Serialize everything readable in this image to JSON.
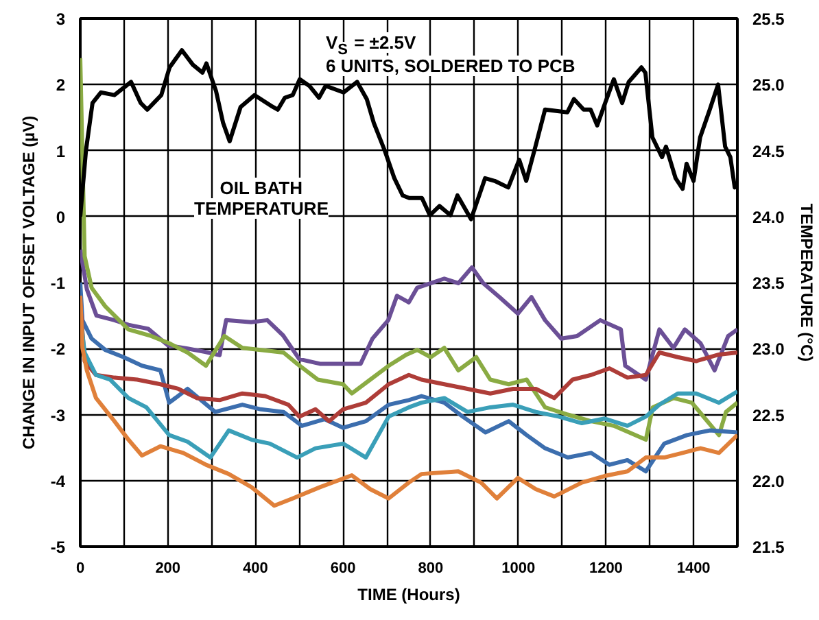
{
  "chart_data": {
    "type": "line",
    "xlabel": "TIME (Hours)",
    "ylabel": "CHANGE IN INPUT OFFSET VOLTAGE (µV)",
    "y2label": "TEMPERATURE (°C)",
    "annotations": [
      "V$_{S}$ = ±2.5V",
      "6 UNITS, SOLDERED TO PCB",
      "OIL BATH\nTEMPERATURE"
    ],
    "xlim": [
      0,
      1500
    ],
    "ylim": [
      -5,
      3
    ],
    "y2lim": [
      21.5,
      25.5
    ],
    "xticks": [
      0,
      {
        "value": 100,
        "label": null
      },
      200,
      {
        "value": 300,
        "label": null
      },
      400,
      {
        "value": 500,
        "label": null
      },
      600,
      {
        "value": 700,
        "label": null
      },
      800,
      {
        "value": 900,
        "label": null
      },
      1000,
      {
        "value": 1100,
        "label": null
      },
      1200,
      {
        "value": 1300,
        "label": null
      },
      1400,
      {
        "value": 1500,
        "label": null
      }
    ],
    "yticks": [
      -5,
      -4,
      -3,
      -2,
      -1,
      0,
      1,
      2,
      3
    ],
    "y2ticks": [
      21.5,
      {
        "value": 22,
        "label": "22.0"
      },
      22.5,
      {
        "value": 23,
        "label": "23.0"
      },
      23.5,
      {
        "value": 24,
        "label": "24.0"
      },
      24.5,
      {
        "value": 25,
        "label": "25.0"
      },
      25.5
    ],
    "grid": true,
    "line_style": "solid",
    "marker": "none",
    "series": [
      {
        "color": "#6b4f96",
        "x": [
          0,
          15,
          37,
          78,
          110,
          155,
          200,
          245,
          285,
          318,
          333,
          390,
          427,
          463,
          500,
          547,
          600,
          640,
          667,
          703,
          723,
          750,
          769,
          831,
          863,
          894,
          920,
          957,
          999,
          1030,
          1061,
          1098,
          1134,
          1187,
          1234,
          1244,
          1291,
          1322,
          1354,
          1380,
          1416,
          1448,
          1479,
          1500
        ],
        "values": [
          -0.5,
          -1.1,
          -1.5,
          -1.57,
          -1.64,
          -1.7,
          -1.95,
          -2.0,
          -2.05,
          -2.1,
          -1.57,
          -1.6,
          -1.57,
          -1.8,
          -2.16,
          -2.23,
          -2.23,
          -2.23,
          -1.85,
          -1.57,
          -1.2,
          -1.3,
          -1.08,
          -0.94,
          -1.01,
          -0.77,
          -1.01,
          -1.22,
          -1.47,
          -1.22,
          -1.57,
          -1.85,
          -1.81,
          -1.57,
          -1.71,
          -2.26,
          -2.47,
          -1.71,
          -1.99,
          -1.71,
          -1.92,
          -2.33,
          -1.81,
          -1.71
        ]
      },
      {
        "color": "#8aab43",
        "x": [
          0,
          10,
          26,
          57,
          110,
          162,
          203,
          245,
          287,
          329,
          370,
          412,
          464,
          495,
          542,
          600,
          620,
          662,
          704,
          745,
          769,
          800,
          831,
          863,
          904,
          936,
          978,
          1019,
          1061,
          1113,
          1166,
          1218,
          1291,
          1307,
          1354,
          1396,
          1458,
          1474,
          1500
        ],
        "values": [
          2.4,
          -0.6,
          -1.08,
          -1.36,
          -1.71,
          -1.81,
          -1.92,
          -2.06,
          -2.26,
          -1.81,
          -1.99,
          -2.02,
          -2.06,
          -2.23,
          -2.47,
          -2.54,
          -2.68,
          -2.47,
          -2.26,
          -2.09,
          -2.02,
          -2.13,
          -1.99,
          -2.33,
          -2.13,
          -2.47,
          -2.54,
          -2.47,
          -2.89,
          -3.0,
          -3.1,
          -3.17,
          -3.38,
          -2.89,
          -2.75,
          -2.82,
          -3.31,
          -2.96,
          -2.82
        ]
      },
      {
        "color": "#3c6eae",
        "x": [
          0,
          5,
          26,
          57,
          99,
          141,
          183,
          203,
          245,
          308,
          370,
          412,
          464,
          506,
          558,
          600,
          652,
          704,
          750,
          779,
          831,
          873,
          925,
          978,
          1019,
          1061,
          1113,
          1166,
          1208,
          1249,
          1291,
          1333,
          1385,
          1437,
          1500
        ],
        "values": [
          -1.0,
          -1.57,
          -1.85,
          -2.02,
          -2.13,
          -2.26,
          -2.33,
          -2.82,
          -2.61,
          -2.96,
          -2.85,
          -2.92,
          -2.96,
          -3.17,
          -3.07,
          -3.2,
          -3.1,
          -2.85,
          -2.78,
          -2.72,
          -2.82,
          -3.03,
          -3.27,
          -3.1,
          -3.31,
          -3.51,
          -3.65,
          -3.58,
          -3.76,
          -3.69,
          -3.86,
          -3.44,
          -3.31,
          -3.24,
          -3.27
        ]
      },
      {
        "color": "#ae3d38",
        "x": [
          0,
          10,
          36,
          78,
          130,
          183,
          224,
          266,
          318,
          370,
          422,
          475,
          500,
          537,
          568,
          600,
          652,
          704,
          750,
          779,
          831,
          884,
          936,
          988,
          1040,
          1082,
          1124,
          1166,
          1208,
          1249,
          1291,
          1322,
          1364,
          1406,
          1458,
          1500
        ],
        "values": [
          -1.3,
          -2.19,
          -2.4,
          -2.44,
          -2.47,
          -2.54,
          -2.61,
          -2.75,
          -2.78,
          -2.68,
          -2.72,
          -2.85,
          -3.03,
          -2.92,
          -3.1,
          -2.92,
          -2.82,
          -2.54,
          -2.4,
          -2.47,
          -2.54,
          -2.61,
          -2.68,
          -2.61,
          -2.61,
          -2.75,
          -2.47,
          -2.4,
          -2.3,
          -2.44,
          -2.4,
          -2.06,
          -2.13,
          -2.19,
          -2.09,
          -2.06
        ]
      },
      {
        "color": "#3a9fb8",
        "x": [
          0,
          10,
          36,
          68,
          110,
          151,
          203,
          245,
          297,
          339,
          391,
          433,
          495,
          537,
          600,
          652,
          704,
          750,
          779,
          831,
          884,
          936,
          988,
          1040,
          1092,
          1145,
          1197,
          1249,
          1291,
          1322,
          1364,
          1406,
          1458,
          1500
        ],
        "values": [
          -1.5,
          -2.06,
          -2.4,
          -2.47,
          -2.75,
          -2.89,
          -3.31,
          -3.41,
          -3.65,
          -3.24,
          -3.38,
          -3.44,
          -3.65,
          -3.51,
          -3.44,
          -3.65,
          -3.03,
          -2.89,
          -2.82,
          -2.75,
          -2.96,
          -2.89,
          -2.85,
          -2.96,
          -3.03,
          -3.13,
          -3.06,
          -3.17,
          -3.03,
          -2.85,
          -2.68,
          -2.68,
          -2.82,
          -2.65
        ]
      },
      {
        "color": "#e0803a",
        "x": [
          0,
          5,
          15,
          36,
          78,
          110,
          141,
          183,
          235,
          287,
          339,
          391,
          443,
          485,
          547,
          620,
          662,
          704,
          750,
          779,
          863,
          915,
          951,
          999,
          1040,
          1082,
          1145,
          1197,
          1249,
          1291,
          1333,
          1375,
          1416,
          1458,
          1500
        ],
        "values": [
          -1.2,
          -1.99,
          -2.33,
          -2.75,
          -3.1,
          -3.38,
          -3.62,
          -3.48,
          -3.58,
          -3.76,
          -3.9,
          -4.1,
          -4.38,
          -4.27,
          -4.1,
          -3.92,
          -4.13,
          -4.27,
          -4.03,
          -3.9,
          -3.86,
          -4.03,
          -4.27,
          -3.96,
          -4.13,
          -4.24,
          -4.03,
          -3.93,
          -3.86,
          -3.65,
          -3.65,
          -3.58,
          -3.51,
          -3.58,
          -3.31
        ]
      },
      {
        "color": "#000000",
        "axis": "y2",
        "x": [
          0,
          13,
          28,
          47,
          78,
          116,
          138,
          153,
          185,
          204,
          232,
          257,
          279,
          288,
          310,
          326,
          341,
          366,
          398,
          435,
          451,
          467,
          485,
          501,
          523,
          545,
          560,
          601,
          632,
          654,
          670,
          695,
          717,
          736,
          751,
          780,
          798,
          820,
          845,
          861,
          892,
          924,
          946,
          977,
          1002,
          1018,
          1039,
          1061,
          1112,
          1127,
          1149,
          1165,
          1180,
          1196,
          1218,
          1237,
          1252,
          1281,
          1290,
          1306,
          1328,
          1337,
          1359,
          1375,
          1384,
          1400,
          1415,
          1437,
          1456,
          1472,
          1484,
          1494,
          1500
        ],
        "values": [
          24.0,
          24.5,
          24.86,
          24.94,
          24.92,
          25.02,
          24.86,
          24.81,
          24.92,
          25.13,
          25.26,
          25.15,
          25.09,
          25.16,
          24.95,
          24.71,
          24.57,
          24.83,
          24.92,
          24.84,
          24.81,
          24.9,
          24.92,
          25.04,
          24.99,
          24.9,
          24.99,
          24.94,
          25.02,
          24.89,
          24.71,
          24.5,
          24.29,
          24.16,
          24.14,
          24.14,
          24.01,
          24.08,
          24.01,
          24.16,
          23.98,
          24.29,
          24.27,
          24.22,
          24.43,
          24.27,
          24.53,
          24.81,
          24.79,
          24.89,
          24.81,
          24.81,
          24.69,
          24.84,
          25.04,
          24.86,
          25.02,
          25.13,
          25.09,
          24.6,
          24.45,
          24.53,
          24.29,
          24.21,
          24.4,
          24.27,
          24.6,
          24.81,
          25.0,
          24.53,
          24.45,
          24.22,
          24.26
        ]
      }
    ]
  }
}
